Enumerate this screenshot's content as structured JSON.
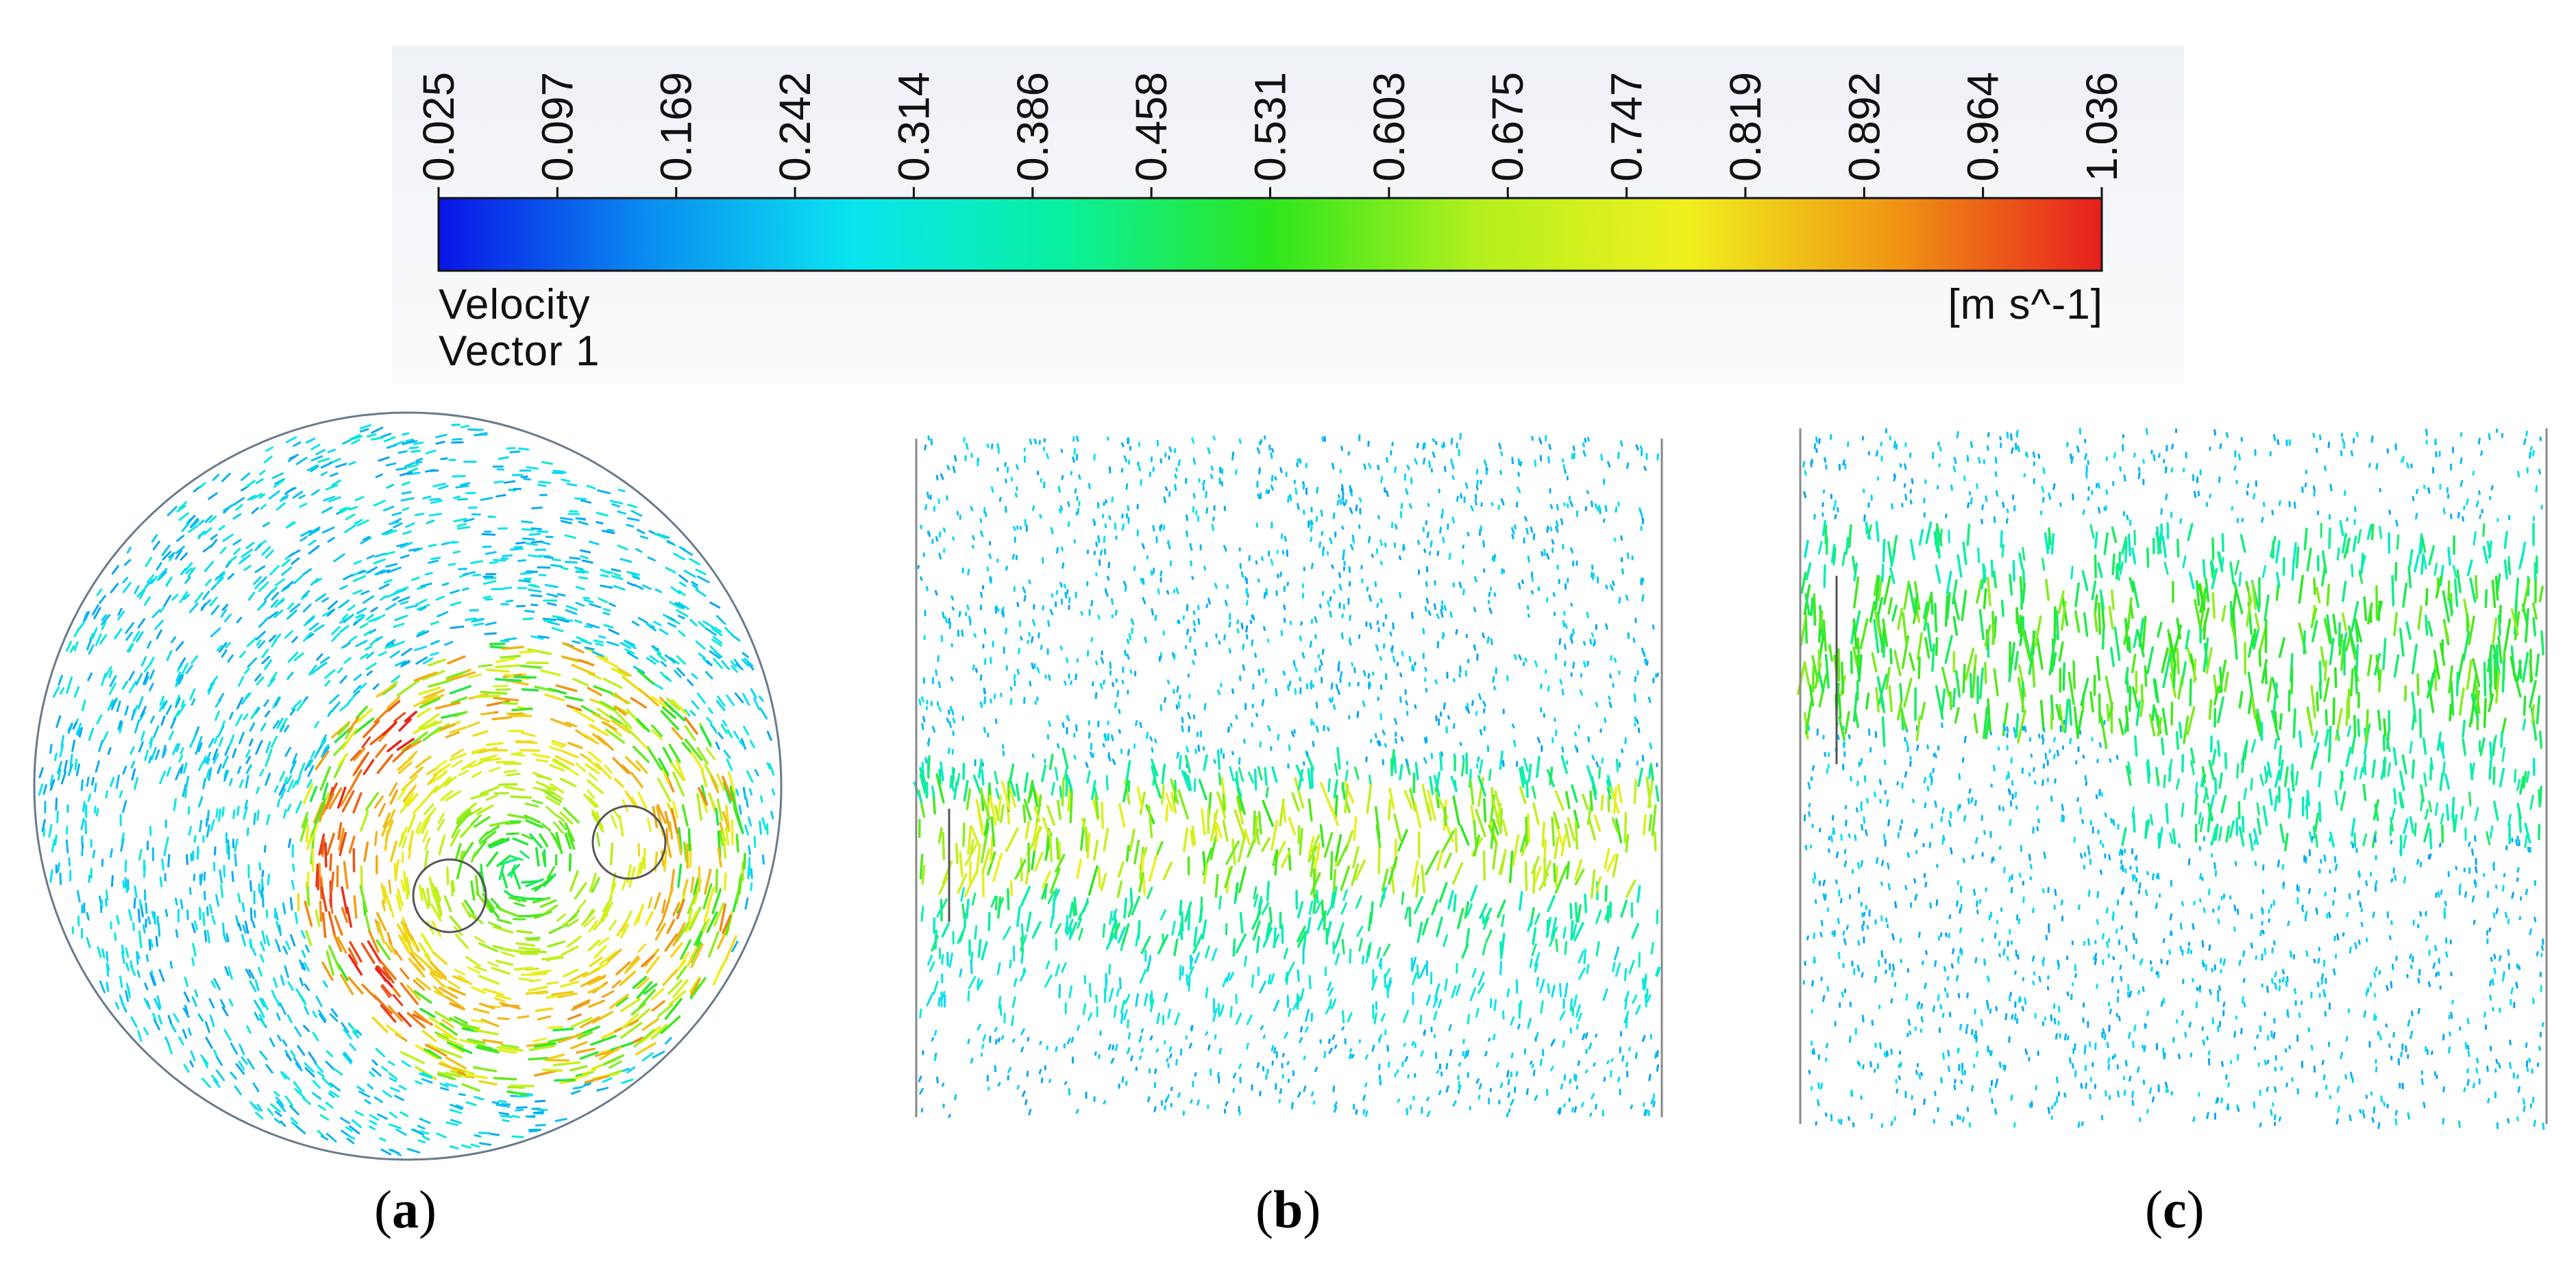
{
  "legend": {
    "ticks": [
      "0.025",
      "0.097",
      "0.169",
      "0.242",
      "0.314",
      "0.386",
      "0.458",
      "0.531",
      "0.603",
      "0.675",
      "0.747",
      "0.819",
      "0.892",
      "0.964",
      "1.036"
    ],
    "title_line1": "Velocity",
    "title_line2": "Vector 1",
    "unit": "[m s^-1]",
    "colormap": [
      "#0a14e6",
      "#0a8cf0",
      "#0ae6f0",
      "#0af0a0",
      "#2ce61e",
      "#b4f01e",
      "#f0f01e",
      "#f09614",
      "#e61e1e"
    ]
  },
  "panels": [
    {
      "label": "a",
      "kind": "top-view"
    },
    {
      "label": "b",
      "kind": "side-view"
    },
    {
      "label": "c",
      "kind": "side-view"
    }
  ]
}
